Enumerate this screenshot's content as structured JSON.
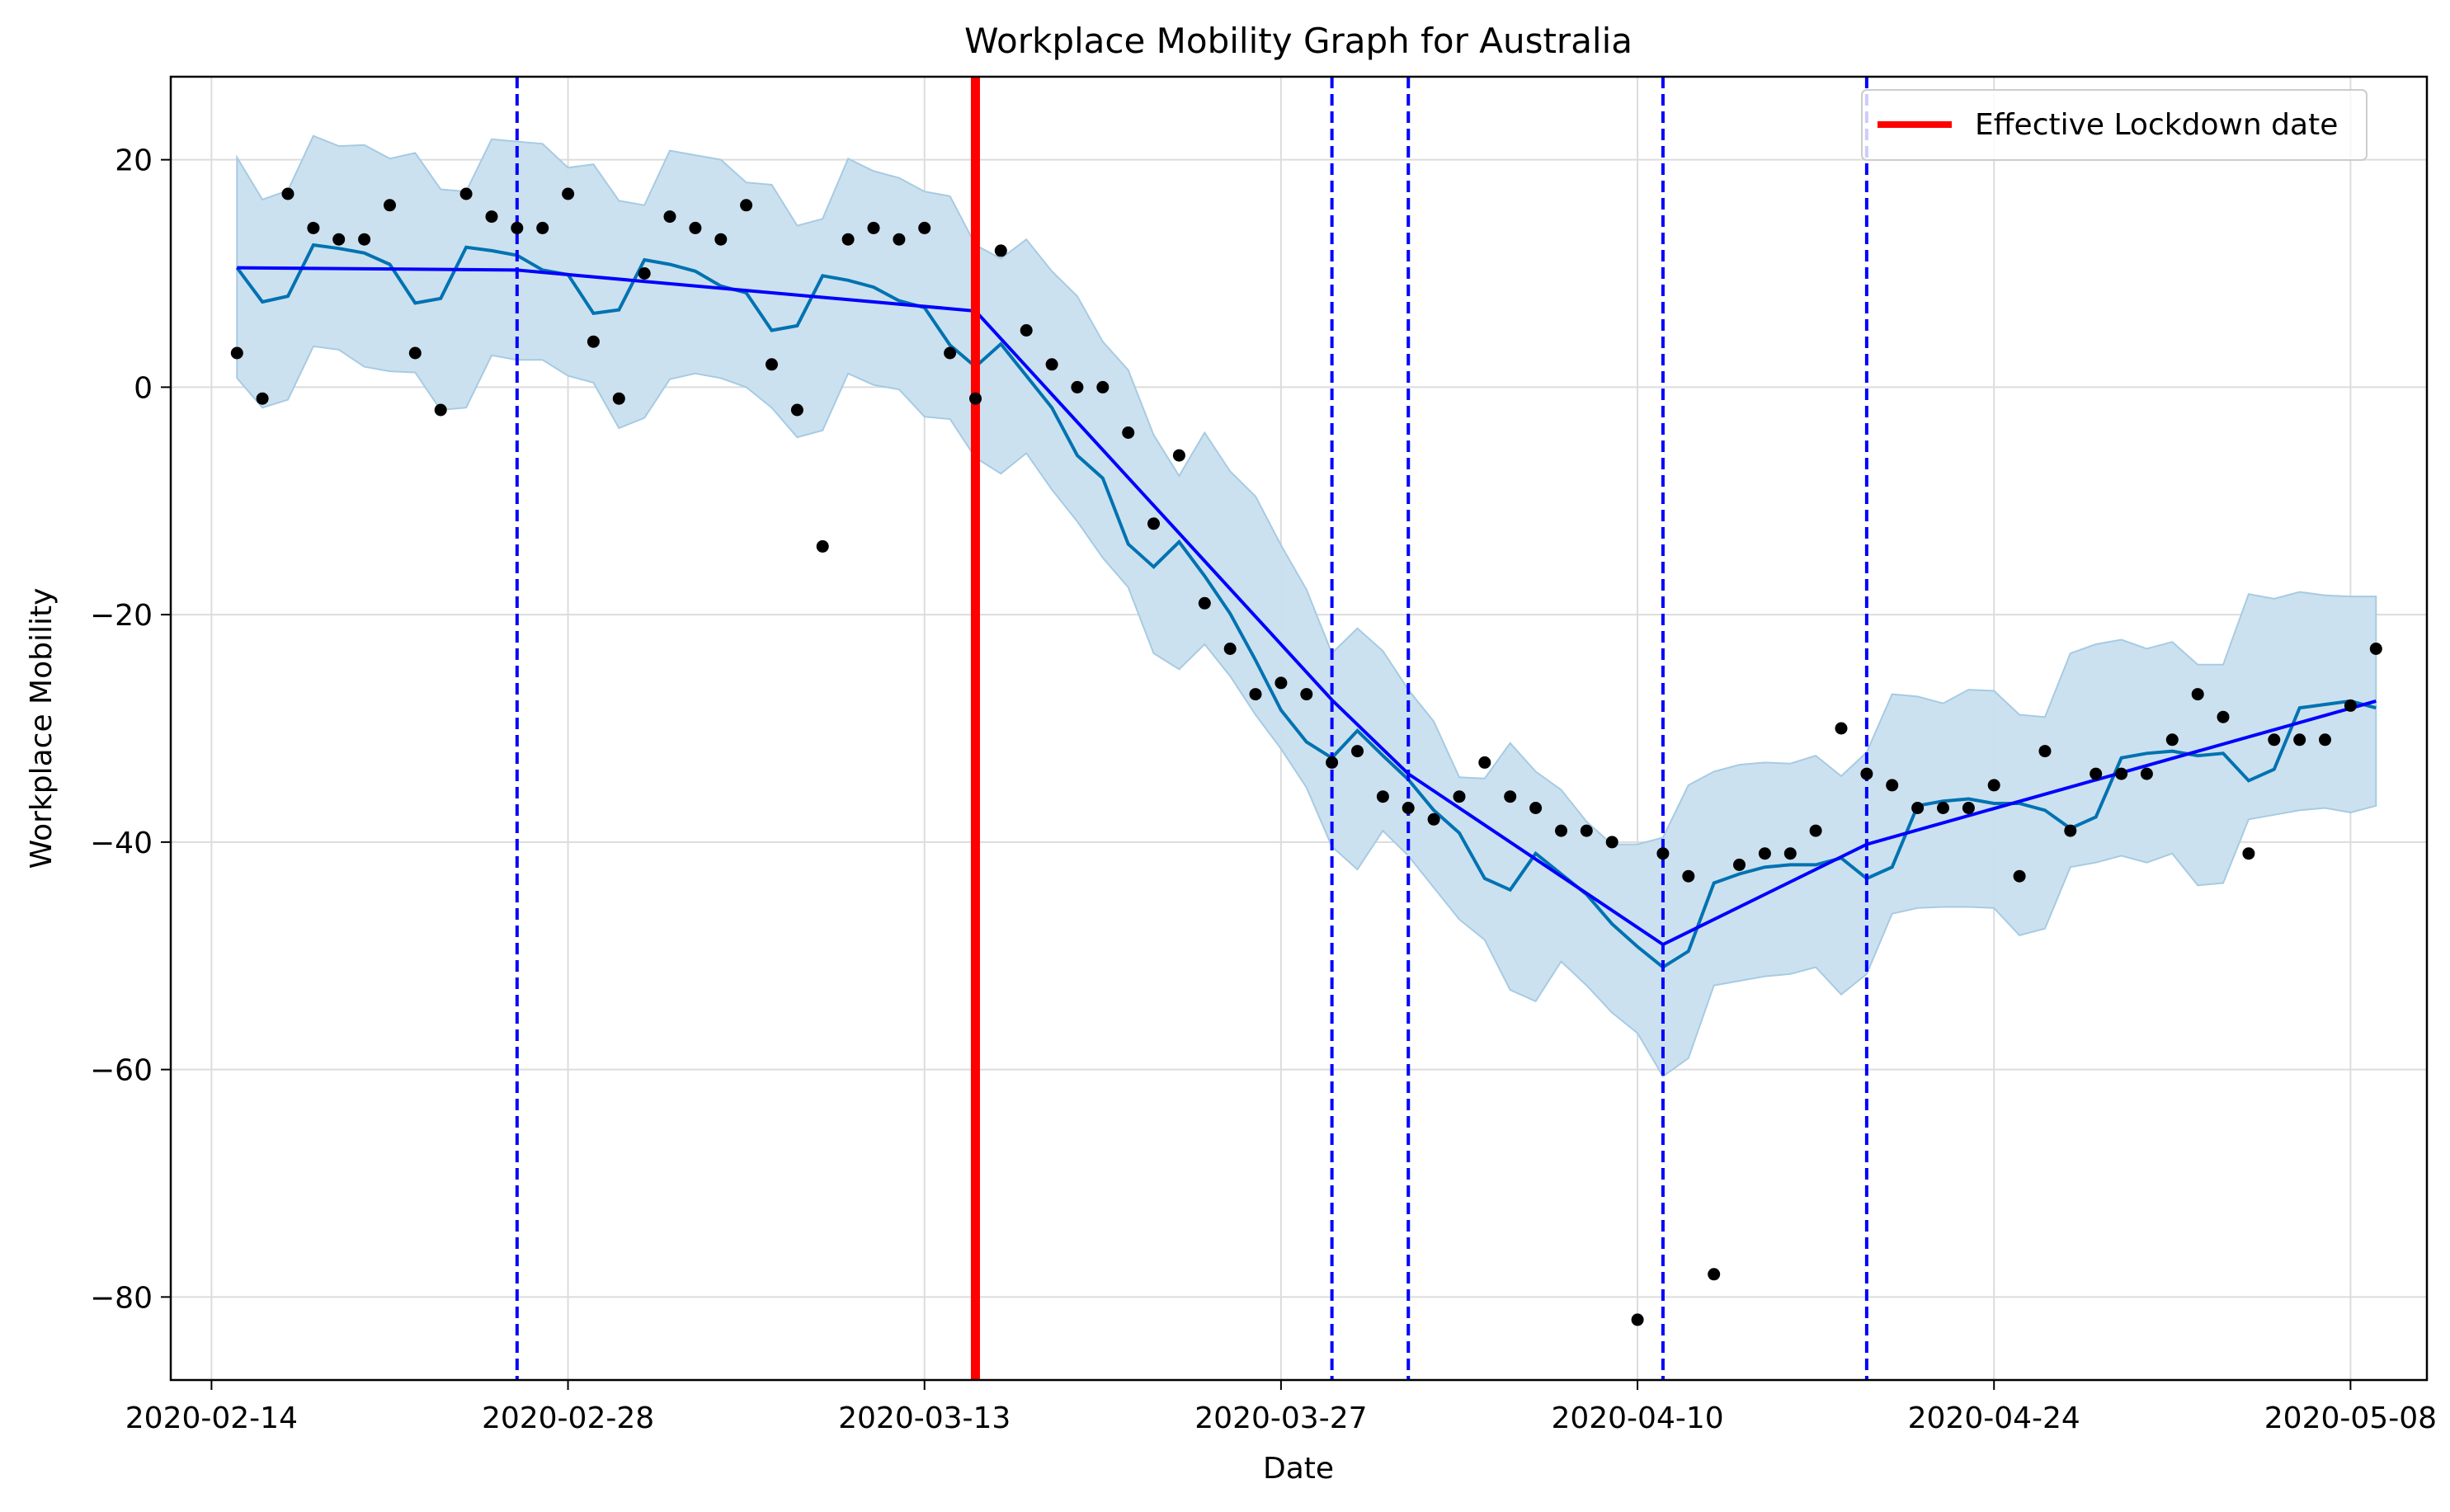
{
  "chart_data": {
    "type": "line",
    "title": "Workplace Mobility Graph for Australia",
    "xlabel": "Date",
    "ylabel": "Workplace Mobility",
    "xlim": [
      "2020-02-14",
      "2020-05-11"
    ],
    "ylim": [
      -87.3,
      27.3
    ],
    "grid": true,
    "legend_position": "top-right",
    "x_tick_labels": [
      "2020-02-14",
      "2020-02-28",
      "2020-03-13",
      "2020-03-27",
      "2020-04-10",
      "2020-04-24",
      "2020-05-08"
    ],
    "y_ticks": [
      20,
      0,
      -20,
      -40,
      -60,
      -80
    ],
    "y_tick_labels": [
      "20",
      "0",
      "−20",
      "−40",
      "−60",
      "−80"
    ],
    "colors": {
      "observations": "#000000",
      "forecast": "#0072B2",
      "interval": "#c9dfee",
      "interval_edge": "#a6cbe3",
      "trend": "#0000ff",
      "changepoints": "#0000ff",
      "lockdown": "#ff0000",
      "grid": "#dcdcdc"
    },
    "observations": {
      "x": [
        "2020-02-15",
        "2020-02-16",
        "2020-02-17",
        "2020-02-18",
        "2020-02-19",
        "2020-02-20",
        "2020-02-21",
        "2020-02-22",
        "2020-02-23",
        "2020-02-24",
        "2020-02-25",
        "2020-02-26",
        "2020-02-27",
        "2020-02-28",
        "2020-02-29",
        "2020-03-01",
        "2020-03-02",
        "2020-03-03",
        "2020-03-04",
        "2020-03-05",
        "2020-03-06",
        "2020-03-07",
        "2020-03-08",
        "2020-03-09",
        "2020-03-10",
        "2020-03-11",
        "2020-03-12",
        "2020-03-13",
        "2020-03-14",
        "2020-03-15",
        "2020-03-16",
        "2020-03-17",
        "2020-03-18",
        "2020-03-19",
        "2020-03-20",
        "2020-03-21",
        "2020-03-22",
        "2020-03-23",
        "2020-03-24",
        "2020-03-25",
        "2020-03-26",
        "2020-03-27",
        "2020-03-28",
        "2020-03-29",
        "2020-03-30",
        "2020-03-31",
        "2020-04-01",
        "2020-04-02",
        "2020-04-03",
        "2020-04-04",
        "2020-04-05",
        "2020-04-06",
        "2020-04-07",
        "2020-04-08",
        "2020-04-09",
        "2020-04-10",
        "2020-04-11",
        "2020-04-12",
        "2020-04-13",
        "2020-04-14",
        "2020-04-15",
        "2020-04-16",
        "2020-04-17",
        "2020-04-18",
        "2020-04-19",
        "2020-04-20",
        "2020-04-21",
        "2020-04-22",
        "2020-04-23",
        "2020-04-24",
        "2020-04-25",
        "2020-04-26",
        "2020-04-27",
        "2020-04-28",
        "2020-04-29",
        "2020-04-30",
        "2020-05-01",
        "2020-05-02",
        "2020-05-03",
        "2020-05-04",
        "2020-05-05",
        "2020-05-06",
        "2020-05-07",
        "2020-05-08",
        "2020-05-09"
      ],
      "y": [
        3,
        -1,
        17,
        14,
        13,
        13,
        16,
        3,
        -2,
        17,
        15,
        14,
        14,
        17,
        4,
        -1,
        10,
        15,
        14,
        13,
        16,
        2,
        -2,
        -14,
        13,
        14,
        13,
        14,
        3,
        -1,
        12,
        5,
        2,
        0,
        0,
        -4,
        -12,
        -6,
        -19,
        -23,
        -27,
        -26,
        -27,
        -33,
        -32,
        -36,
        -37,
        -38,
        -36,
        -33,
        -36,
        -37,
        -39,
        -39,
        -40,
        -82,
        -41,
        -43,
        -78,
        -42,
        -41,
        -41,
        -39,
        -30,
        -34,
        -35,
        -37,
        -37,
        -37,
        -35,
        -43,
        -32,
        -39,
        -34,
        -34,
        -34,
        -31,
        -27,
        -29,
        -41,
        -31,
        -31,
        -31,
        -28,
        -23
      ]
    },
    "trend": {
      "x": [
        "2020-02-15",
        "2020-02-26",
        "2020-03-15",
        "2020-03-29",
        "2020-04-01",
        "2020-04-11",
        "2020-04-19",
        "2020-05-09"
      ],
      "y": [
        10.5,
        10.3,
        6.7,
        -27.5,
        -34.0,
        -49.0,
        -40.2,
        -27.6
      ]
    },
    "forecast": {
      "x": [
        "2020-02-15",
        "2020-02-16",
        "2020-02-17",
        "2020-02-18",
        "2020-02-19",
        "2020-02-20",
        "2020-02-21",
        "2020-02-22",
        "2020-02-23",
        "2020-02-24",
        "2020-02-25",
        "2020-02-26",
        "2020-02-27",
        "2020-02-28",
        "2020-02-29",
        "2020-03-01",
        "2020-03-02",
        "2020-03-03",
        "2020-03-04",
        "2020-03-05",
        "2020-03-06",
        "2020-03-07",
        "2020-03-08",
        "2020-03-09",
        "2020-03-10",
        "2020-03-11",
        "2020-03-12",
        "2020-03-13",
        "2020-03-14",
        "2020-03-15",
        "2020-03-16",
        "2020-03-17",
        "2020-03-18",
        "2020-03-19",
        "2020-03-20",
        "2020-03-21",
        "2020-03-22",
        "2020-03-23",
        "2020-03-24",
        "2020-03-25",
        "2020-03-26",
        "2020-03-27",
        "2020-03-28",
        "2020-03-29",
        "2020-03-30",
        "2020-03-31",
        "2020-04-01",
        "2020-04-02",
        "2020-04-03",
        "2020-04-04",
        "2020-04-05",
        "2020-04-06",
        "2020-04-07",
        "2020-04-08",
        "2020-04-09",
        "2020-04-10",
        "2020-04-11",
        "2020-04-12",
        "2020-04-13",
        "2020-04-14",
        "2020-04-15",
        "2020-04-16",
        "2020-04-17",
        "2020-04-18",
        "2020-04-19",
        "2020-04-20",
        "2020-04-21",
        "2020-04-22",
        "2020-04-23",
        "2020-04-24",
        "2020-04-25",
        "2020-04-26",
        "2020-04-27",
        "2020-04-28",
        "2020-04-29",
        "2020-04-30",
        "2020-05-01",
        "2020-05-02",
        "2020-05-03",
        "2020-05-04",
        "2020-05-05",
        "2020-05-06",
        "2020-05-07",
        "2020-05-08",
        "2020-05-09"
      ],
      "y": [
        10.5,
        7.5,
        8.0,
        12.5,
        12.2,
        11.8,
        10.8,
        7.4,
        7.8,
        12.3,
        12.0,
        11.6,
        10.3,
        9.9,
        6.5,
        6.8,
        11.2,
        10.8,
        10.2,
        8.9,
        8.3,
        5.0,
        5.4,
        9.8,
        9.4,
        8.8,
        7.6,
        7.0,
        3.7,
        1.8,
        3.8,
        1.0,
        -1.8,
        -6.0,
        -8.0,
        -13.8,
        -15.8,
        -13.6,
        -16.6,
        -19.9,
        -24.0,
        -28.4,
        -31.2,
        -32.6,
        -30.2,
        -32.4,
        -34.5,
        -37.2,
        -39.2,
        -43.2,
        -44.2,
        -41.0,
        -42.8,
        -44.6,
        -47.2,
        -49.2,
        -51.0,
        -49.6,
        -43.6,
        -42.8,
        -42.2,
        -42.0,
        -42.0,
        -41.4,
        -43.2,
        -42.2,
        -36.8,
        -36.4,
        -36.2,
        -36.6,
        -36.6,
        -37.2,
        -38.8,
        -37.8,
        -32.6,
        -32.2,
        -32.0,
        -32.4,
        -32.2,
        -34.6,
        -33.6,
        -28.2,
        -27.9,
        -27.6,
        -28.2
      ]
    },
    "interval": {
      "upper": [
        20.2,
        16.5,
        17.3,
        22.1,
        21.2,
        21.3,
        20.1,
        20.6,
        17.4,
        17.2,
        21.8,
        21.6,
        21.4,
        19.3,
        19.6,
        16.4,
        16.0,
        20.8,
        20.4,
        20.0,
        18.0,
        17.8,
        14.2,
        14.8,
        20.1,
        19.0,
        18.4,
        17.2,
        16.8,
        12.5,
        11.3,
        13.0,
        10.2,
        8.0,
        4.0,
        1.5,
        -4.2,
        -7.8,
        -4.0,
        -7.4,
        -9.6,
        -13.9,
        -17.8,
        -23.4,
        -21.2,
        -23.2,
        -26.6,
        -29.4,
        -34.3,
        -34.4,
        -31.3,
        -33.8,
        -35.4,
        -38.2,
        -40.2,
        -40.2,
        -39.6,
        -35.0,
        -33.8,
        -33.2,
        -33.0,
        -33.1,
        -32.4,
        -34.2,
        -32.1,
        -27.0,
        -27.2,
        -27.8,
        -26.6,
        -26.7,
        -28.8,
        -29.0,
        -23.4,
        -22.6,
        -22.2,
        -23.0,
        -22.4,
        -24.4,
        -24.4,
        -18.2,
        -18.6,
        -18.0,
        -18.3,
        -18.4,
        -18.4
      ],
      "lower": [
        0.8,
        -1.8,
        -1.1,
        3.6,
        3.3,
        1.8,
        1.4,
        1.3,
        -2.0,
        -1.8,
        2.8,
        2.4,
        2.4,
        1.0,
        0.4,
        -3.6,
        -2.7,
        0.7,
        1.2,
        0.8,
        0.0,
        -1.8,
        -4.4,
        -3.8,
        1.2,
        0.2,
        -0.2,
        -2.6,
        -2.8,
        -6.2,
        -7.6,
        -5.8,
        -9.0,
        -11.8,
        -15.0,
        -17.6,
        -23.4,
        -24.8,
        -22.6,
        -25.4,
        -28.8,
        -31.8,
        -35.2,
        -40.4,
        -42.4,
        -39.0,
        -41.2,
        -44.0,
        -46.8,
        -48.6,
        -53.0,
        -54.0,
        -50.5,
        -52.6,
        -55.0,
        -56.8,
        -60.6,
        -59.0,
        -52.6,
        -52.2,
        -51.8,
        -51.6,
        -51.0,
        -53.4,
        -51.6,
        -46.3,
        -45.8,
        -45.7,
        -45.7,
        -45.8,
        -48.2,
        -47.6,
        -42.2,
        -41.8,
        -41.2,
        -41.8,
        -41.0,
        -43.8,
        -43.6,
        -38.0,
        -37.6,
        -37.2,
        -37.0,
        -37.4,
        -36.8
      ]
    },
    "changepoints": [
      "2020-02-26",
      "2020-03-29",
      "2020-04-01",
      "2020-04-11",
      "2020-04-19"
    ],
    "lockdown": {
      "x": "2020-03-15",
      "label": "Effective Lockdown date"
    }
  }
}
